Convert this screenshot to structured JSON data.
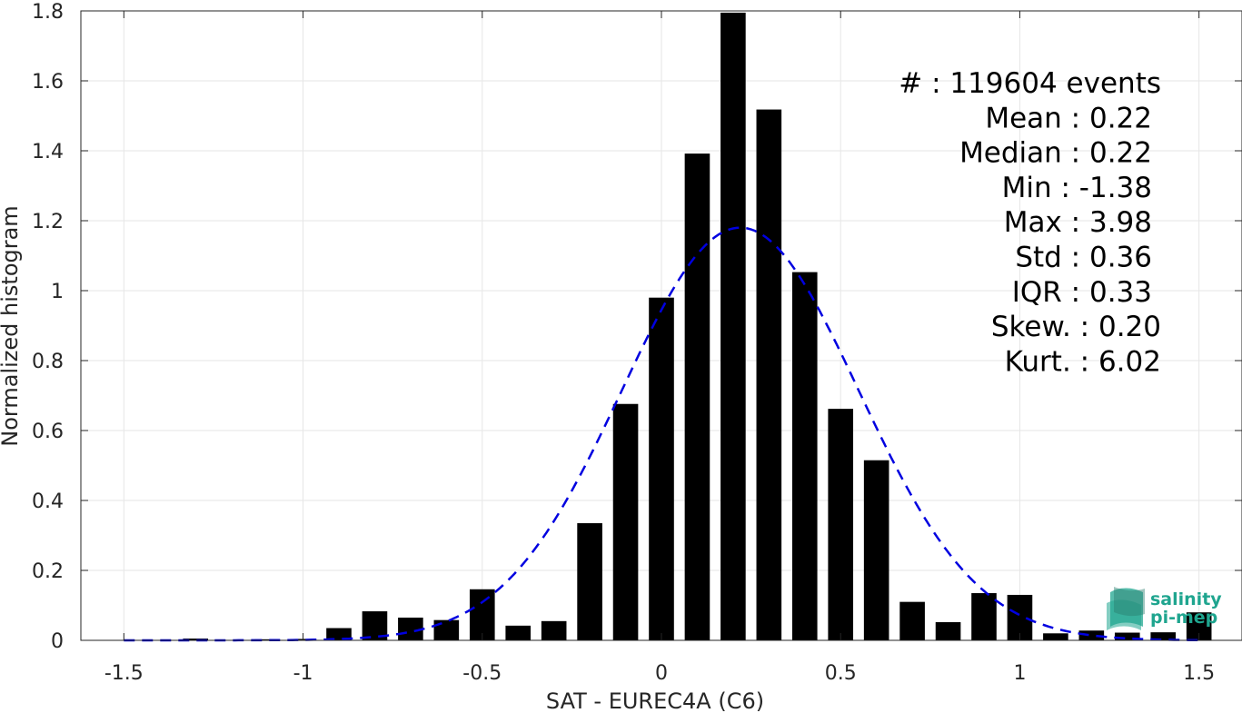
{
  "chart_data": {
    "type": "bar",
    "title": "",
    "xlabel": "SAT - EUREC4A (C6)",
    "ylabel": "Normalized histogram",
    "xlim": [
      -1.62,
      1.62
    ],
    "ylim": [
      0,
      1.8
    ],
    "xticks": [
      -1.5,
      -1,
      -0.5,
      0,
      0.5,
      1,
      1.5
    ],
    "xtick_labels": [
      "-1.5",
      "-1",
      "-0.5",
      "0",
      "0.5",
      "1",
      "1.5"
    ],
    "yticks": [
      0,
      0.2,
      0.4,
      0.6,
      0.8,
      1,
      1.2,
      1.4,
      1.6,
      1.8
    ],
    "ytick_labels": [
      "0",
      "0.2",
      "0.4",
      "0.6",
      "0.8",
      "1",
      "1.2",
      "1.4",
      "1.6",
      "1.8"
    ],
    "grid": true,
    "bar_color": "#000000",
    "bar_width": 0.07,
    "bins": [
      -1.5,
      -1.4,
      -1.3,
      -1.2,
      -1.1,
      -1.0,
      -0.9,
      -0.8,
      -0.7,
      -0.6,
      -0.5,
      -0.4,
      -0.3,
      -0.2,
      -0.1,
      0.0,
      0.1,
      0.2,
      0.3,
      0.4,
      0.5,
      0.6,
      0.7,
      0.8,
      0.9,
      1.0,
      1.1,
      1.2,
      1.3,
      1.4,
      1.5
    ],
    "values": [
      0.0,
      0.0,
      0.005,
      0.0,
      0.003,
      0.004,
      0.035,
      0.083,
      0.065,
      0.058,
      0.146,
      0.042,
      0.055,
      0.335,
      0.676,
      0.98,
      1.392,
      1.795,
      1.518,
      1.053,
      0.662,
      0.515,
      0.11,
      0.052,
      0.135,
      0.13,
      0.02,
      0.028,
      0.022,
      0.023,
      0.08
    ],
    "fit": {
      "type": "normal",
      "mean": 0.22,
      "std": 0.33,
      "peak": 1.18,
      "color": "#0000e0",
      "style": "dashed"
    },
    "annotations": [
      "#  : 119604 events",
      "Mean : 0.22",
      "Median : 0.22",
      "Min : -1.38",
      "Max : 3.98",
      "Std : 0.36",
      "IQR : 0.33",
      "Skew. : 0.20",
      "Kurt. : 6.02"
    ]
  },
  "logo": {
    "line1": "salinity",
    "line2": "pi-mep",
    "color": "#1fa58f"
  }
}
